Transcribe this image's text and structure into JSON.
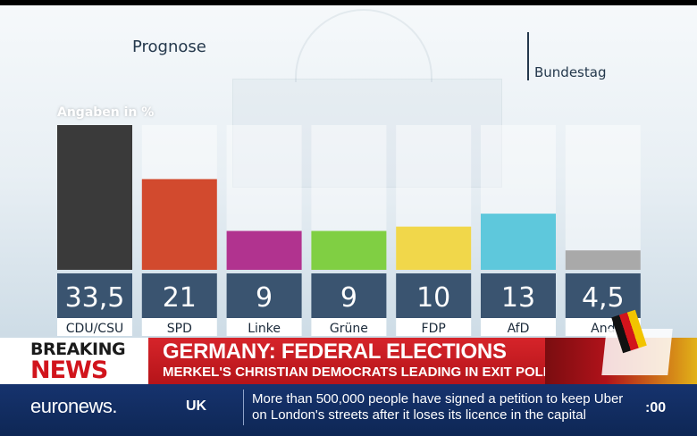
{
  "graphic": {
    "title": "Prognose",
    "subtitle": "Bundestag",
    "unit_label": "Angaben in %"
  },
  "chart_data": {
    "type": "bar",
    "categories": [
      "CDU/CSU",
      "SPD",
      "Linke",
      "Grüne",
      "FDP",
      "AfD",
      "And"
    ],
    "values": [
      33.5,
      21,
      9,
      9,
      10,
      13,
      4.5
    ],
    "value_labels": [
      "33,5",
      "21",
      "9",
      "9",
      "10",
      "13",
      "4,5"
    ],
    "colors": [
      "#3a3a3a",
      "#d24a2e",
      "#b1338f",
      "#80cf43",
      "#f1d74a",
      "#5ec8dc",
      "#a9a9a9"
    ],
    "ylim": [
      0,
      33.5
    ],
    "title": "Prognose",
    "ylabel": "Angaben in %",
    "grid": false
  },
  "breaking": {
    "tag_line1": "BREAKING",
    "tag_line2": "NEWS",
    "headline": "GERMANY: FEDERAL ELECTIONS",
    "subheadline": "MERKEL'S CHRISTIAN DEMOCRATS LEADING IN EXIT POLLS"
  },
  "ticker": {
    "logo": "euronews.",
    "region": "UK",
    "text_line1": "More than 500,000 people have signed a petition to keep Uber",
    "text_line2": "on London's streets after it loses its licence in the capital",
    "clock": ":00"
  }
}
